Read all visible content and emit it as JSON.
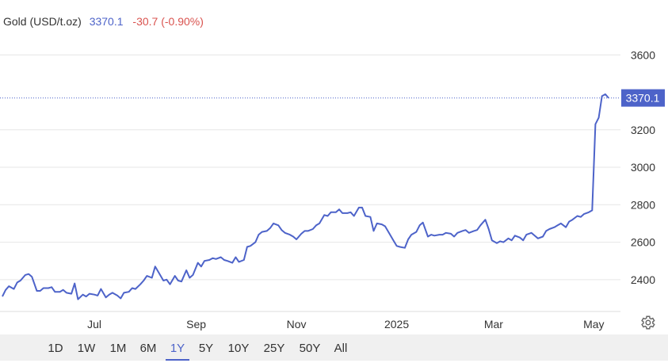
{
  "header": {
    "title": "Gold (USD/t.oz)",
    "price": "3370.1",
    "change": "-30.7 (-0.90%)"
  },
  "price_tag": "3370.1",
  "colors": {
    "line": "#4d63c9",
    "change_negative": "#d9534f",
    "grid": "#e6e6e6",
    "range_bar_bg": "#f0f0f0"
  },
  "icons": {
    "settings": "gear-icon"
  },
  "range_buttons": [
    "1D",
    "1W",
    "1M",
    "6M",
    "1Y",
    "5Y",
    "10Y",
    "25Y",
    "50Y",
    "All"
  ],
  "active_range": "1Y",
  "chart_data": {
    "type": "line",
    "title": "Gold (USD/t.oz)",
    "xlabel": "",
    "ylabel": "",
    "ylim": [
      2230,
      3800
    ],
    "xlim": [
      "2024-05-06",
      "2025-05-10"
    ],
    "yticks": [
      2400,
      2600,
      2800,
      3000,
      3200,
      3600
    ],
    "xticks": [
      {
        "label": "Jul",
        "date": "2024-07-01"
      },
      {
        "label": "Sep",
        "date": "2024-09-01"
      },
      {
        "label": "Nov",
        "date": "2024-11-01"
      },
      {
        "label": "2025",
        "date": "2025-01-01"
      },
      {
        "label": "Mar",
        "date": "2025-03-01"
      },
      {
        "label": "May",
        "date": "2025-05-01"
      }
    ],
    "grid": true,
    "last_value": 3370.1,
    "series": [
      {
        "points": [
          [
            "2024-05-06",
            2310
          ],
          [
            "2024-05-08",
            2345
          ],
          [
            "2024-05-10",
            2365
          ],
          [
            "2024-05-13",
            2350
          ],
          [
            "2024-05-15",
            2385
          ],
          [
            "2024-05-17",
            2395
          ],
          [
            "2024-05-20",
            2425
          ],
          [
            "2024-05-22",
            2430
          ],
          [
            "2024-05-24",
            2415
          ],
          [
            "2024-05-27",
            2340
          ],
          [
            "2024-05-29",
            2340
          ],
          [
            "2024-05-31",
            2355
          ],
          [
            "2024-06-03",
            2355
          ],
          [
            "2024-06-05",
            2360
          ],
          [
            "2024-06-07",
            2335
          ],
          [
            "2024-06-10",
            2335
          ],
          [
            "2024-06-12",
            2345
          ],
          [
            "2024-06-14",
            2330
          ],
          [
            "2024-06-17",
            2325
          ],
          [
            "2024-06-19",
            2380
          ],
          [
            "2024-06-21",
            2295
          ],
          [
            "2024-06-24",
            2320
          ],
          [
            "2024-06-26",
            2310
          ],
          [
            "2024-06-28",
            2325
          ],
          [
            "2024-07-01",
            2320
          ],
          [
            "2024-07-03",
            2315
          ],
          [
            "2024-07-05",
            2350
          ],
          [
            "2024-07-08",
            2305
          ],
          [
            "2024-07-10",
            2320
          ],
          [
            "2024-07-12",
            2330
          ],
          [
            "2024-07-15",
            2315
          ],
          [
            "2024-07-17",
            2300
          ],
          [
            "2024-07-19",
            2330
          ],
          [
            "2024-07-22",
            2335
          ],
          [
            "2024-07-24",
            2355
          ],
          [
            "2024-07-26",
            2350
          ],
          [
            "2024-07-29",
            2375
          ],
          [
            "2024-07-31",
            2395
          ],
          [
            "2024-08-02",
            2420
          ],
          [
            "2024-08-05",
            2410
          ],
          [
            "2024-08-07",
            2470
          ],
          [
            "2024-08-09",
            2440
          ],
          [
            "2024-08-12",
            2395
          ],
          [
            "2024-08-14",
            2400
          ],
          [
            "2024-08-16",
            2375
          ],
          [
            "2024-08-19",
            2420
          ],
          [
            "2024-08-21",
            2395
          ],
          [
            "2024-08-23",
            2390
          ],
          [
            "2024-08-26",
            2450
          ],
          [
            "2024-08-28",
            2410
          ],
          [
            "2024-08-30",
            2425
          ],
          [
            "2024-09-02",
            2490
          ],
          [
            "2024-09-04",
            2470
          ],
          [
            "2024-09-06",
            2500
          ],
          [
            "2024-09-09",
            2505
          ],
          [
            "2024-09-11",
            2515
          ],
          [
            "2024-09-13",
            2510
          ],
          [
            "2024-09-16",
            2520
          ],
          [
            "2024-09-18",
            2505
          ],
          [
            "2024-09-20",
            2500
          ],
          [
            "2024-09-23",
            2490
          ],
          [
            "2024-09-25",
            2520
          ],
          [
            "2024-09-27",
            2495
          ],
          [
            "2024-09-30",
            2505
          ],
          [
            "2024-10-02",
            2575
          ],
          [
            "2024-10-04",
            2580
          ],
          [
            "2024-10-07",
            2600
          ],
          [
            "2024-10-09",
            2640
          ],
          [
            "2024-10-11",
            2655
          ],
          [
            "2024-10-14",
            2660
          ],
          [
            "2024-10-16",
            2675
          ],
          [
            "2024-10-18",
            2700
          ],
          [
            "2024-10-21",
            2690
          ],
          [
            "2024-10-23",
            2665
          ],
          [
            "2024-10-25",
            2650
          ],
          [
            "2024-10-28",
            2640
          ],
          [
            "2024-10-30",
            2630
          ],
          [
            "2024-11-01",
            2615
          ],
          [
            "2024-11-04",
            2645
          ],
          [
            "2024-11-06",
            2660
          ],
          [
            "2024-11-08",
            2660
          ],
          [
            "2024-11-11",
            2670
          ],
          [
            "2024-11-13",
            2690
          ],
          [
            "2024-11-15",
            2700
          ],
          [
            "2024-11-18",
            2745
          ],
          [
            "2024-11-20",
            2740
          ],
          [
            "2024-11-22",
            2760
          ],
          [
            "2024-11-25",
            2760
          ],
          [
            "2024-11-27",
            2775
          ],
          [
            "2024-11-29",
            2755
          ],
          [
            "2024-12-02",
            2755
          ],
          [
            "2024-12-04",
            2760
          ],
          [
            "2024-12-06",
            2740
          ],
          [
            "2024-12-09",
            2785
          ],
          [
            "2024-12-11",
            2785
          ],
          [
            "2024-12-13",
            2740
          ],
          [
            "2024-12-16",
            2735
          ],
          [
            "2024-12-18",
            2660
          ],
          [
            "2024-12-20",
            2700
          ],
          [
            "2024-12-23",
            2695
          ],
          [
            "2024-12-25",
            2685
          ],
          [
            "2024-12-27",
            2655
          ],
          [
            "2024-12-30",
            2610
          ],
          [
            "2025-01-01",
            2580
          ],
          [
            "2025-01-03",
            2575
          ],
          [
            "2025-01-06",
            2570
          ],
          [
            "2025-01-08",
            2615
          ],
          [
            "2025-01-10",
            2640
          ],
          [
            "2025-01-13",
            2655
          ],
          [
            "2025-01-15",
            2690
          ],
          [
            "2025-01-17",
            2705
          ],
          [
            "2025-01-20",
            2630
          ],
          [
            "2025-01-22",
            2640
          ],
          [
            "2025-01-24",
            2635
          ],
          [
            "2025-01-27",
            2640
          ],
          [
            "2025-01-29",
            2640
          ],
          [
            "2025-01-31",
            2650
          ],
          [
            "2025-02-03",
            2645
          ],
          [
            "2025-02-05",
            2630
          ],
          [
            "2025-02-07",
            2650
          ],
          [
            "2025-02-10",
            2660
          ],
          [
            "2025-02-12",
            2665
          ],
          [
            "2025-02-14",
            2650
          ],
          [
            "2025-02-17",
            2660
          ],
          [
            "2025-02-19",
            2665
          ],
          [
            "2025-02-21",
            2690
          ],
          [
            "2025-02-24",
            2720
          ],
          [
            "2025-02-26",
            2670
          ],
          [
            "2025-02-28",
            2610
          ],
          [
            "2025-03-03",
            2595
          ],
          [
            "2025-03-05",
            2605
          ],
          [
            "2025-03-07",
            2600
          ],
          [
            "2025-03-10",
            2620
          ],
          [
            "2025-03-12",
            2610
          ],
          [
            "2025-03-14",
            2635
          ],
          [
            "2025-03-17",
            2625
          ],
          [
            "2025-03-19",
            2610
          ],
          [
            "2025-03-21",
            2640
          ],
          [
            "2025-03-24",
            2650
          ],
          [
            "2025-03-26",
            2635
          ],
          [
            "2025-03-28",
            2620
          ],
          [
            "2025-03-31",
            2630
          ],
          [
            "2025-04-02",
            2660
          ],
          [
            "2025-04-04",
            2670
          ],
          [
            "2025-04-07",
            2680
          ],
          [
            "2025-04-09",
            2690
          ],
          [
            "2025-04-11",
            2700
          ],
          [
            "2025-04-14",
            2680
          ],
          [
            "2025-04-16",
            2710
          ],
          [
            "2025-04-18",
            2720
          ],
          [
            "2025-04-21",
            2740
          ],
          [
            "2025-04-23",
            2735
          ],
          [
            "2025-04-25",
            2750
          ],
          [
            "2025-04-28",
            2760
          ],
          [
            "2025-04-30",
            2770
          ],
          [
            "2025-05-02",
            3230
          ],
          [
            "2025-05-04",
            3265
          ],
          [
            "2025-05-06",
            3380
          ],
          [
            "2025-05-08",
            3390
          ],
          [
            "2025-05-10",
            3370.1
          ]
        ]
      }
    ]
  }
}
